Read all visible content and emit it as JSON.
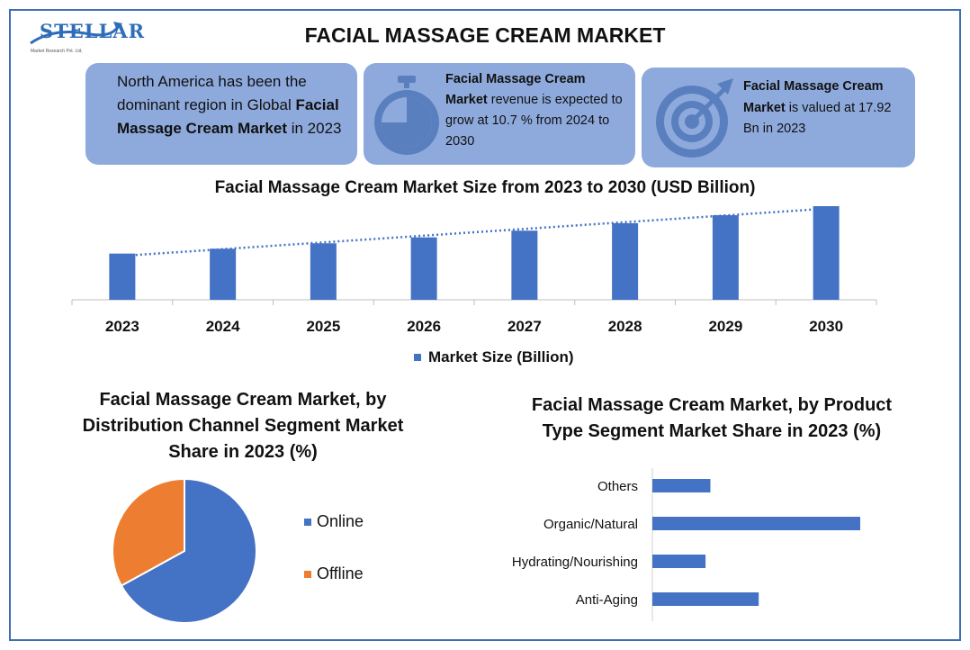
{
  "header": {
    "logo_text": "STELLAR",
    "logo_sub": "Market Research Pvt. Ltd.",
    "title": "FACIAL MASSAGE CREAM MARKET"
  },
  "cards": {
    "card1": {
      "line1": "North America has been the dominant region in Global ",
      "bold": "Facial Massage Cream Market",
      "line2": " in 2023"
    },
    "card2": {
      "bold": "Facial Massage Cream Market",
      "text": " revenue is expected to grow at 10.7 % from 2024 to 2030",
      "icon": "stopwatch-icon"
    },
    "card3": {
      "bold": "Facial Massage Cream Market",
      "text": " is valued at 17.92 Bn in 2023",
      "icon": "target-icon"
    }
  },
  "colors": {
    "blue": "#4472c4",
    "orange": "#ed7d31",
    "card": "#8eaadc"
  },
  "chart_data": [
    {
      "type": "bar",
      "title": "Facial Massage Cream Market Size from 2023 to 2030 (USD Billion)",
      "categories": [
        "2023",
        "2024",
        "2025",
        "2026",
        "2027",
        "2028",
        "2029",
        "2030"
      ],
      "series": [
        {
          "name": "Market Size (Billion)",
          "values": [
            17.92,
            19.8,
            21.9,
            24.2,
            26.8,
            29.7,
            32.8,
            36.3
          ]
        }
      ],
      "trendline": "linear dotted",
      "ylim": [
        0,
        36.3
      ],
      "legend": "bottom"
    },
    {
      "type": "pie",
      "title": "Facial Massage Cream Market, by Distribution Channel Segment Market Share in 2023 (%)",
      "labels": [
        "Online",
        "Offline"
      ],
      "values": [
        67,
        33
      ],
      "legend": "right"
    },
    {
      "type": "bar",
      "orientation": "horizontal",
      "title": "Facial Massage Cream Market, by Product Type Segment Market Share in 2023 (%)",
      "categories": [
        "Others",
        "Organic/Natural",
        "Hydrating/Nourishing",
        "Anti-Aging"
      ],
      "values": [
        12,
        43,
        11,
        22
      ]
    }
  ]
}
